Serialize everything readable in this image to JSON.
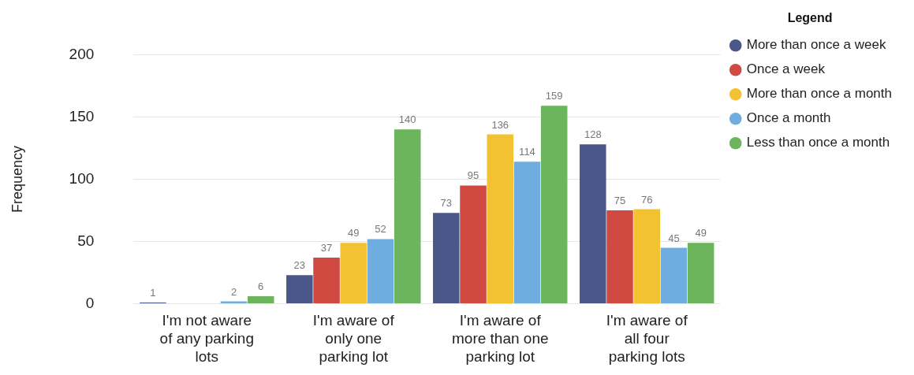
{
  "chart_data": {
    "type": "bar",
    "ylabel": "Frequency",
    "legend_title": "Legend",
    "legend": "top right",
    "grid": "y",
    "data_labels": true,
    "ylim": [
      0,
      200
    ],
    "yticks": [
      0,
      50,
      100,
      150,
      200
    ],
    "categories": [
      "I'm not aware of any parking lots",
      "I'm aware of only one parking lot",
      "I'm aware of more than one parking lot",
      "I'm aware of all four parking lots"
    ],
    "series": [
      {
        "name": "More than once a week",
        "color": "#4a5788",
        "values": [
          1,
          23,
          73,
          128
        ]
      },
      {
        "name": "Once a week",
        "color": "#d04a42",
        "values": [
          null,
          37,
          95,
          75
        ]
      },
      {
        "name": "More than once a month",
        "color": "#f3c232",
        "values": [
          null,
          49,
          136,
          76
        ]
      },
      {
        "name": "Once a month",
        "color": "#6fade0",
        "values": [
          2,
          52,
          114,
          45
        ]
      },
      {
        "name": "Less than once a month",
        "color": "#6cb55d",
        "values": [
          6,
          140,
          159,
          49
        ]
      }
    ]
  }
}
